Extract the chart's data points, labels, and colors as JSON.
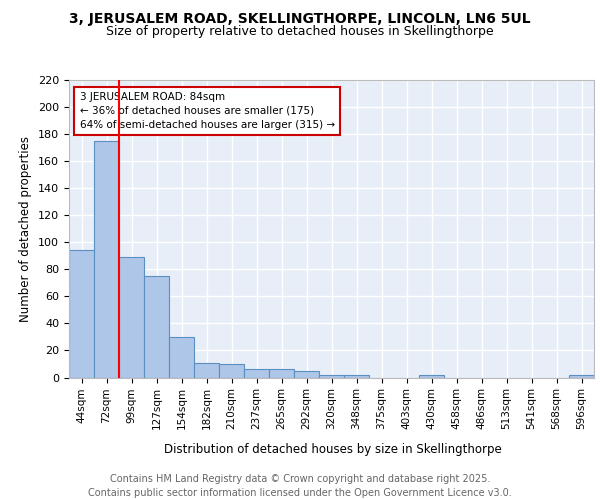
{
  "title": "3, JERUSALEM ROAD, SKELLINGTHORPE, LINCOLN, LN6 5UL",
  "subtitle": "Size of property relative to detached houses in Skellingthorpe",
  "xlabel": "Distribution of detached houses by size in Skellingthorpe",
  "ylabel": "Number of detached properties",
  "categories": [
    "44sqm",
    "72sqm",
    "99sqm",
    "127sqm",
    "154sqm",
    "182sqm",
    "210sqm",
    "237sqm",
    "265sqm",
    "292sqm",
    "320sqm",
    "348sqm",
    "375sqm",
    "403sqm",
    "430sqm",
    "458sqm",
    "486sqm",
    "513sqm",
    "541sqm",
    "568sqm",
    "596sqm"
  ],
  "values": [
    94,
    175,
    89,
    75,
    30,
    11,
    10,
    6,
    6,
    5,
    2,
    2,
    0,
    0,
    2,
    0,
    0,
    0,
    0,
    0,
    2
  ],
  "bar_color": "#aec6e8",
  "bar_edge_color": "#5a8fc2",
  "red_line_x": 1.5,
  "annotation_text": "3 JERUSALEM ROAD: 84sqm\n← 36% of detached houses are smaller (175)\n64% of semi-detached houses are larger (315) →",
  "annotation_box_color": "#ffffff",
  "annotation_box_edge": "#cc0000",
  "ylim": [
    0,
    220
  ],
  "yticks": [
    0,
    20,
    40,
    60,
    80,
    100,
    120,
    140,
    160,
    180,
    200,
    220
  ],
  "background_color": "#e8eef8",
  "grid_color": "#ffffff",
  "footer_text": "Contains HM Land Registry data © Crown copyright and database right 2025.\nContains public sector information licensed under the Open Government Licence v3.0.",
  "red_line_color": "#ff0000",
  "title_fontsize": 10,
  "subtitle_fontsize": 9,
  "footer_fontsize": 7
}
